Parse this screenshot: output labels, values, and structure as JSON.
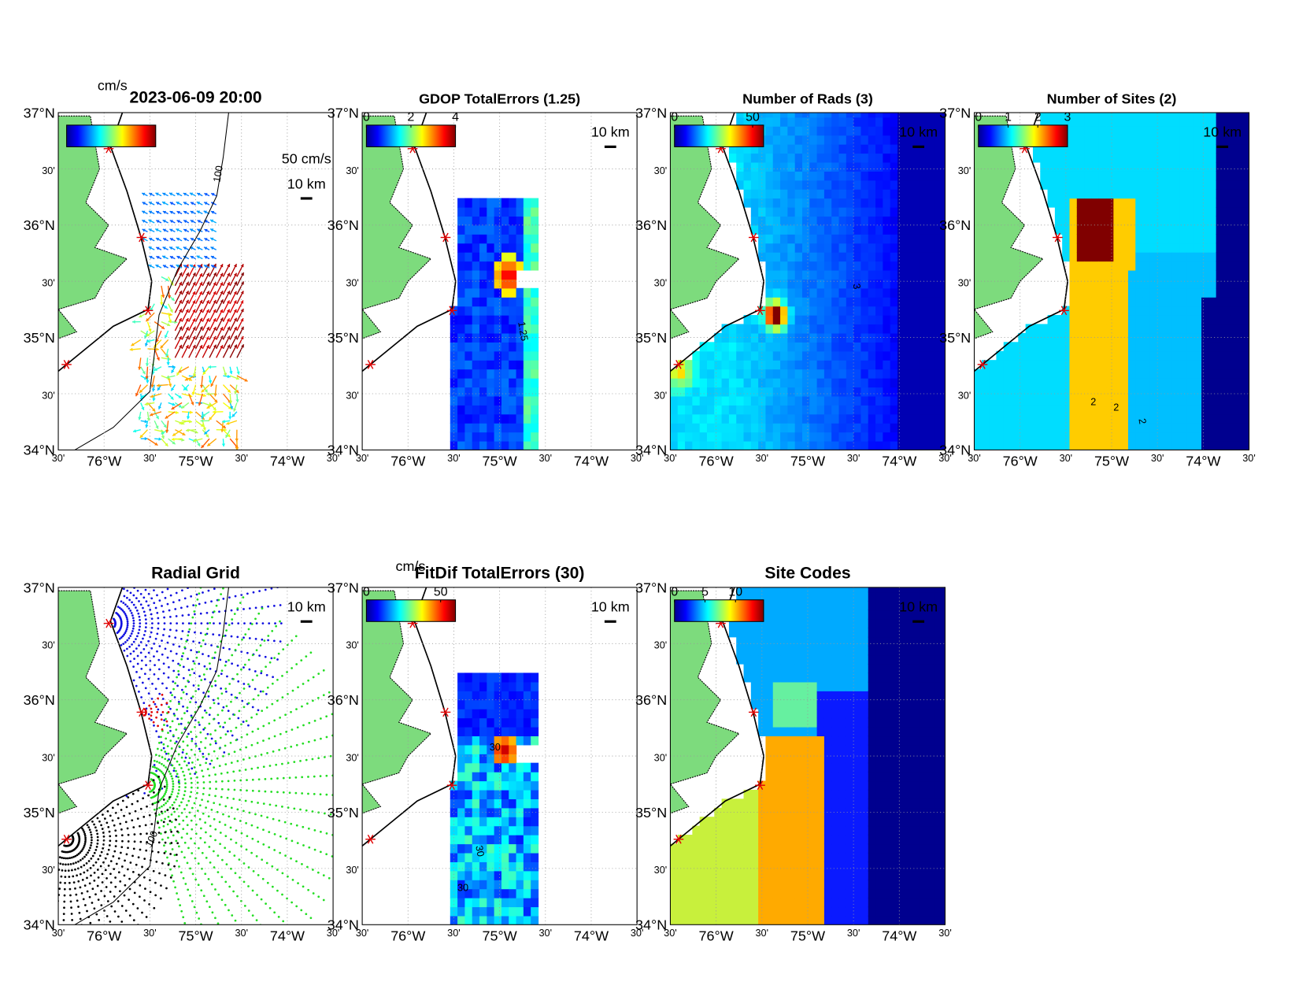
{
  "axes": {
    "lat_ticks": [
      "37°N",
      "30'",
      "36°N",
      "30'",
      "35°N",
      "30'",
      "34°N"
    ],
    "lon_ticks": [
      "30'",
      "76°W",
      "30'",
      "75°W",
      "30'",
      "74°W",
      "30'"
    ]
  },
  "panels": [
    {
      "title": "2023-06-09 20:00",
      "colorbar_label": "cm/s",
      "velocity_scale": "50 cm/s",
      "distance_scale": "10 km",
      "contour_labels": [
        "100"
      ]
    },
    {
      "title": "GDOP TotalErrors (1.25)",
      "colorbar_ticks": [
        0,
        2,
        4
      ],
      "distance_scale": "10 km",
      "contour_labels": [
        "1.25"
      ]
    },
    {
      "title": "Number of Rads (3)",
      "colorbar_ticks": [
        0,
        50
      ],
      "distance_scale": "10 km",
      "contour_labels": [
        "3"
      ]
    },
    {
      "title": "Number of Sites (2)",
      "colorbar_ticks": [
        0,
        1,
        2,
        3
      ],
      "distance_scale": "10 km",
      "contour_labels": [
        "2"
      ]
    },
    {
      "title": "Radial Grid",
      "distance_scale": "10 km",
      "contour_labels": [
        "100"
      ]
    },
    {
      "title": "FitDif TotalErrors (30)",
      "colorbar_label": "cm/s",
      "colorbar_ticks": [
        0,
        50
      ],
      "distance_scale": "10 km",
      "contour_labels": [
        "30"
      ]
    },
    {
      "title": "Site Codes",
      "colorbar_ticks": [
        0,
        5,
        10
      ],
      "distance_scale": "10 km"
    }
  ]
}
